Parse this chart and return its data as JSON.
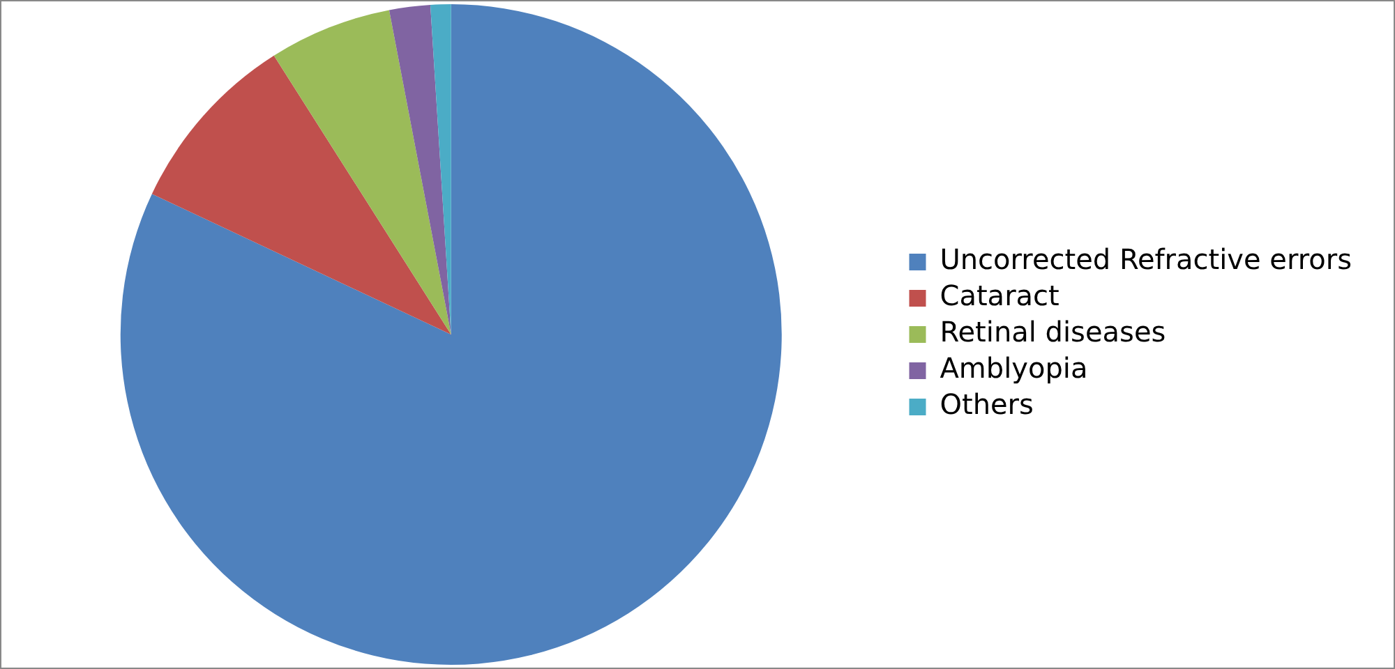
{
  "chart_data": {
    "type": "pie",
    "categories": [
      "Uncorrected Refractive errors",
      "Cataract",
      "Retinal diseases",
      "Amblyopia",
      "Others"
    ],
    "values": [
      82,
      9,
      6,
      2,
      1
    ],
    "colors": [
      "#4f81bd",
      "#c0504d",
      "#9bbb59",
      "#8064a2",
      "#4bacc6"
    ],
    "legend": "right"
  }
}
